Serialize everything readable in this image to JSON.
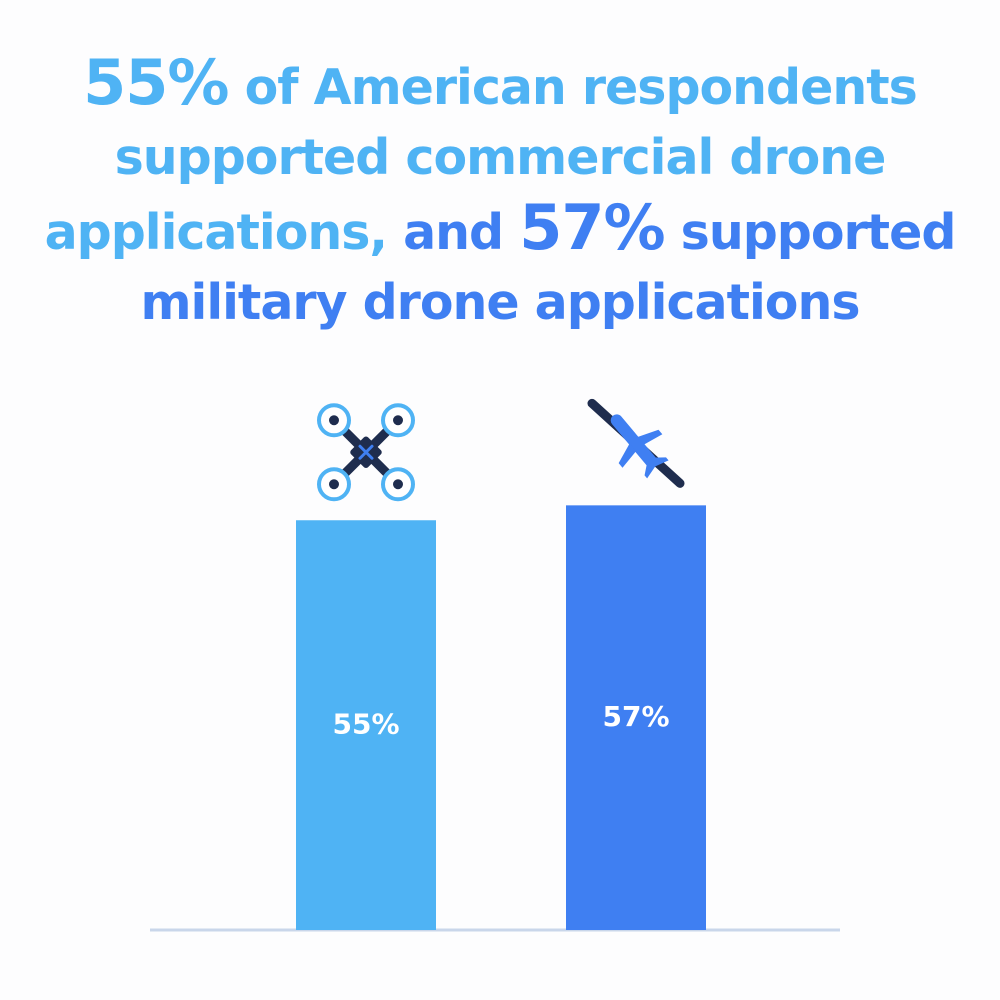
{
  "headline": {
    "line1_pct": "55%",
    "line1_rest": " of American respondents",
    "line2": "supported commercial drone",
    "line3_a": "applications,",
    "line3_b": " and ",
    "line3_pct": "57%",
    "line3_c": " supported",
    "line4": "military drone applications"
  },
  "colors": {
    "commercial": "#4fb3f4",
    "military": "#3f7ff2",
    "icon_dark": "#1f2d4e",
    "baseline": "#c9d6ea"
  },
  "chart_data": {
    "type": "bar",
    "categories": [
      "commercial",
      "military"
    ],
    "values": [
      55,
      57
    ],
    "labels": [
      "55%",
      "57%"
    ],
    "icons": [
      "quadcopter-drone-icon",
      "military-drone-icon"
    ],
    "ylim": [
      0,
      100
    ],
    "grid": false
  }
}
